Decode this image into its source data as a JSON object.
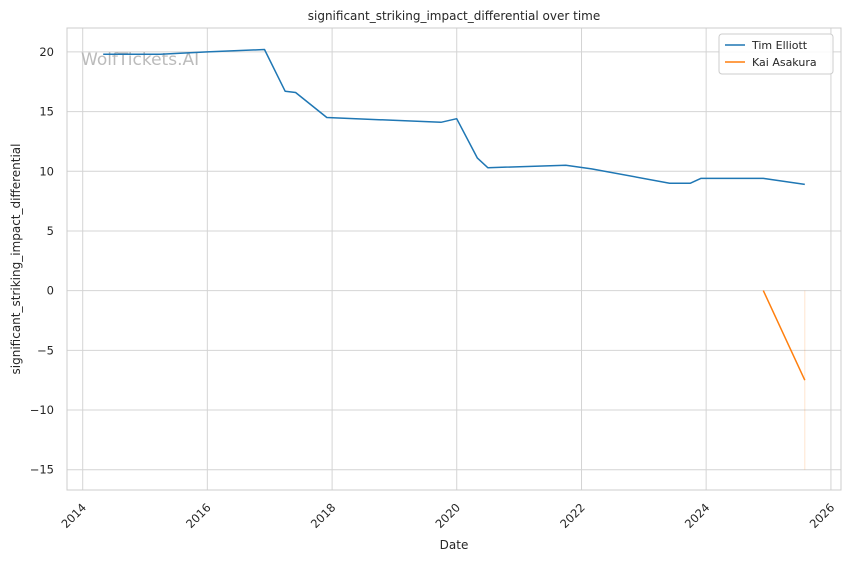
{
  "chart_data": {
    "type": "line",
    "title": "significant_striking_impact_differential over time",
    "xlabel": "Date",
    "ylabel": "significant_striking_impact_differential",
    "watermark": "WolfTickets.AI",
    "xlim": [
      "2013-10-01",
      "2026-03-01"
    ],
    "ylim": [
      -16.7,
      22
    ],
    "x_ticks": [
      "2014",
      "2016",
      "2018",
      "2020",
      "2022",
      "2024",
      "2026"
    ],
    "y_ticks": [
      20,
      15,
      10,
      5,
      0,
      -5,
      -10,
      -15
    ],
    "y_tick_labels": [
      "20",
      "15",
      "10",
      "5",
      "0",
      "−5",
      "−10",
      "−15"
    ],
    "grid": true,
    "legend_position": "top-right",
    "series": [
      {
        "name": "Tim Elliott",
        "color": "#1f77b4",
        "points": [
          [
            "2014-05-01",
            19.8
          ],
          [
            "2015-04-01",
            19.8
          ],
          [
            "2016-01-01",
            20.0
          ],
          [
            "2016-12-01",
            20.2
          ],
          [
            "2017-04-01",
            16.7
          ],
          [
            "2017-06-01",
            16.6
          ],
          [
            "2017-12-01",
            14.5
          ],
          [
            "2019-10-01",
            14.1
          ],
          [
            "2020-01-01",
            14.4
          ],
          [
            "2020-05-01",
            11.1
          ],
          [
            "2020-07-01",
            10.3
          ],
          [
            "2021-10-01",
            10.5
          ],
          [
            "2022-03-01",
            10.2
          ],
          [
            "2023-06-01",
            9.0
          ],
          [
            "2023-10-01",
            9.0
          ],
          [
            "2023-12-01",
            9.4
          ],
          [
            "2024-12-01",
            9.4
          ],
          [
            "2025-08-01",
            8.9
          ]
        ]
      },
      {
        "name": "Kai Asakura",
        "color": "#ff7f0e",
        "points": [
          [
            "2024-12-01",
            0.0
          ],
          [
            "2025-08-01",
            -7.5
          ]
        ]
      }
    ],
    "annotations": [
      {
        "type": "vertical-line",
        "x": "2025-08-01",
        "y_range": [
          -15,
          0
        ],
        "color": "#ff7f0e",
        "opacity": 0.2
      }
    ]
  }
}
